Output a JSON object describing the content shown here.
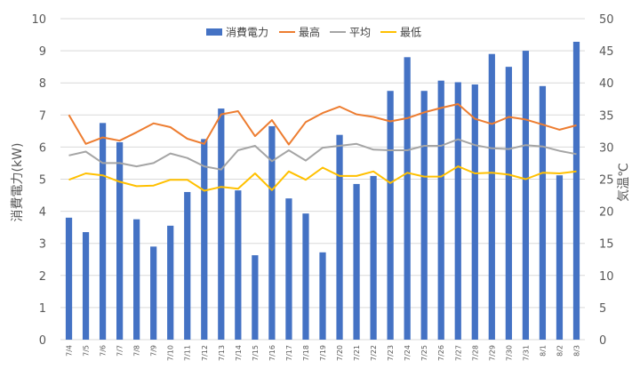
{
  "chart_data": {
    "type": "bar",
    "categories": [
      "7/4",
      "7/5",
      "7/6",
      "7/7",
      "7/8",
      "7/9",
      "7/10",
      "7/11",
      "7/12",
      "7/13",
      "7/14",
      "7/15",
      "7/16",
      "7/17",
      "7/18",
      "7/19",
      "7/20",
      "7/21",
      "7/22",
      "7/23",
      "7/24",
      "7/25",
      "7/26",
      "7/27",
      "7/28",
      "7/29",
      "7/30",
      "7/31",
      "8/1",
      "8/2",
      "8/3"
    ],
    "bar_series": {
      "name": "消費電力",
      "color": "#4472C4",
      "axis": "left",
      "values": [
        3.8,
        3.35,
        6.75,
        6.15,
        3.75,
        2.9,
        3.55,
        4.6,
        6.25,
        7.2,
        4.65,
        2.63,
        6.65,
        4.4,
        3.93,
        2.72,
        6.38,
        4.85,
        5.1,
        7.75,
        8.8,
        7.75,
        8.07,
        8.02,
        7.95,
        8.9,
        8.5,
        9.0,
        7.9,
        5.12,
        9.28
      ]
    },
    "line_series": [
      {
        "name": "最高",
        "color": "#ED7D31",
        "axis": "right",
        "values": [
          35.0,
          30.5,
          31.5,
          31.0,
          32.3,
          33.7,
          33.1,
          31.3,
          30.5,
          35.1,
          35.6,
          31.7,
          34.2,
          30.4,
          33.9,
          35.3,
          36.3,
          35.1,
          34.7,
          34.0,
          34.5,
          35.4,
          36.1,
          36.7,
          34.4,
          33.6,
          34.7,
          34.3,
          33.5,
          32.7,
          33.4
        ]
      },
      {
        "name": "平均",
        "color": "#A5A5A5",
        "axis": "right",
        "values": [
          28.7,
          29.3,
          27.5,
          27.5,
          27.0,
          27.5,
          29.0,
          28.3,
          27.0,
          26.5,
          29.5,
          30.2,
          27.8,
          29.5,
          27.9,
          29.9,
          30.2,
          30.5,
          29.6,
          29.5,
          29.5,
          30.2,
          30.2,
          31.2,
          30.3,
          29.8,
          29.7,
          30.3,
          30.1,
          29.4,
          28.9
        ]
      },
      {
        "name": "最低",
        "color": "#FFC000",
        "axis": "right",
        "values": [
          24.9,
          25.9,
          25.6,
          24.6,
          23.9,
          24.0,
          24.9,
          24.9,
          23.2,
          23.8,
          23.5,
          25.9,
          23.3,
          26.2,
          24.9,
          26.8,
          25.5,
          25.5,
          26.2,
          24.4,
          26.0,
          25.4,
          25.4,
          27.0,
          25.9,
          26.0,
          25.7,
          25.0,
          26.0,
          25.9,
          26.2
        ]
      }
    ],
    "legend": [
      "消費電力",
      "最高",
      "平均",
      "最低"
    ],
    "legend_position": "top",
    "ylabel": "消費電力(kW)",
    "y2label": "気温℃",
    "ylim": [
      0,
      10
    ],
    "y2lim": [
      0,
      50
    ],
    "yticks": [
      "0",
      "1",
      "2",
      "3",
      "4",
      "5",
      "6",
      "7",
      "8",
      "9",
      "10"
    ],
    "y2ticks": [
      "0",
      "5",
      "10",
      "15",
      "20",
      "25",
      "30",
      "35",
      "40",
      "45",
      "50"
    ],
    "grid": true,
    "gridline_color": "#D9D9D9",
    "title": ""
  }
}
